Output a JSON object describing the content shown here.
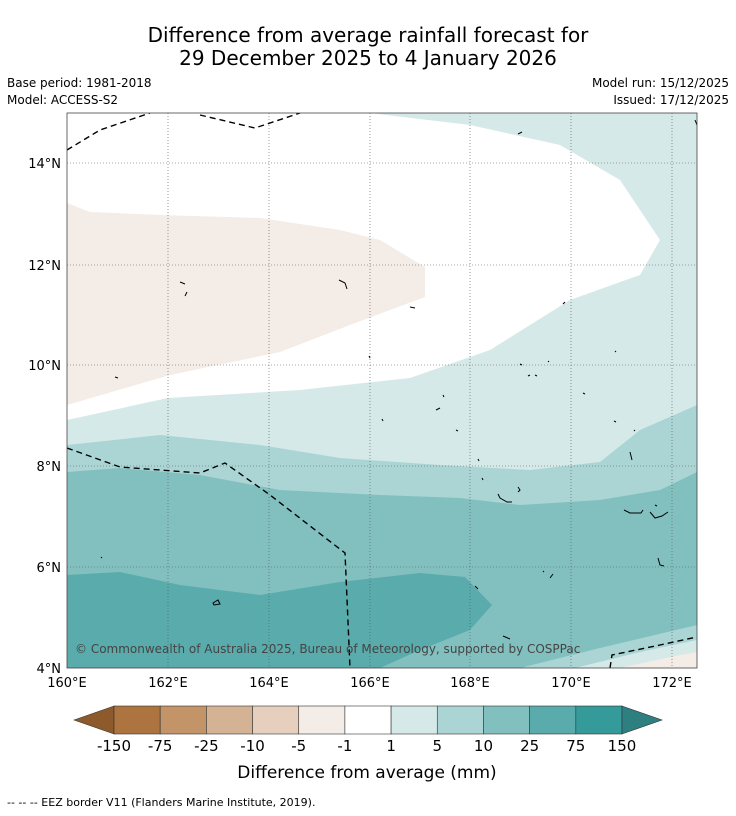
{
  "title": {
    "line1": "Difference from average rainfall forecast for",
    "line2": "29 December 2025 to 4 January 2026"
  },
  "meta": {
    "base_period": "Base period: 1981-2018",
    "model": "Model: ACCESS-S2",
    "model_run": "Model run: 15/12/2025",
    "issued": "Issued: 17/12/2025"
  },
  "map": {
    "lon_range": [
      160,
      172.5
    ],
    "lat_range": [
      4,
      15
    ],
    "lon_ticks": [
      "160°E",
      "162°E",
      "164°E",
      "166°E",
      "168°E",
      "170°E",
      "172°E"
    ],
    "lat_ticks": [
      "4°N",
      "6°N",
      "8°N",
      "10°N",
      "12°N",
      "14°N"
    ],
    "copyright": "© Commonwealth of Australia 2025, Bureau of Meteorology, supported by COSPPac"
  },
  "colorbar": {
    "labels": [
      "-150",
      "-75",
      "-25",
      "-10",
      "-5",
      "-1",
      "1",
      "5",
      "10",
      "25",
      "75",
      "150"
    ],
    "colors": [
      "#8c5a2b",
      "#ad7440",
      "#c29468",
      "#d4b294",
      "#e6cfbd",
      "#f4ece6",
      "#ffffff",
      "#d5e9e8",
      "#abd5d5",
      "#82c0c0",
      "#5aabac",
      "#349a9a",
      "#2d7f80"
    ],
    "title": "Difference from average (mm)"
  },
  "footer": {
    "legend": "--  --  -- EEZ border V11 (Flanders Marine Institute, 2019)."
  }
}
